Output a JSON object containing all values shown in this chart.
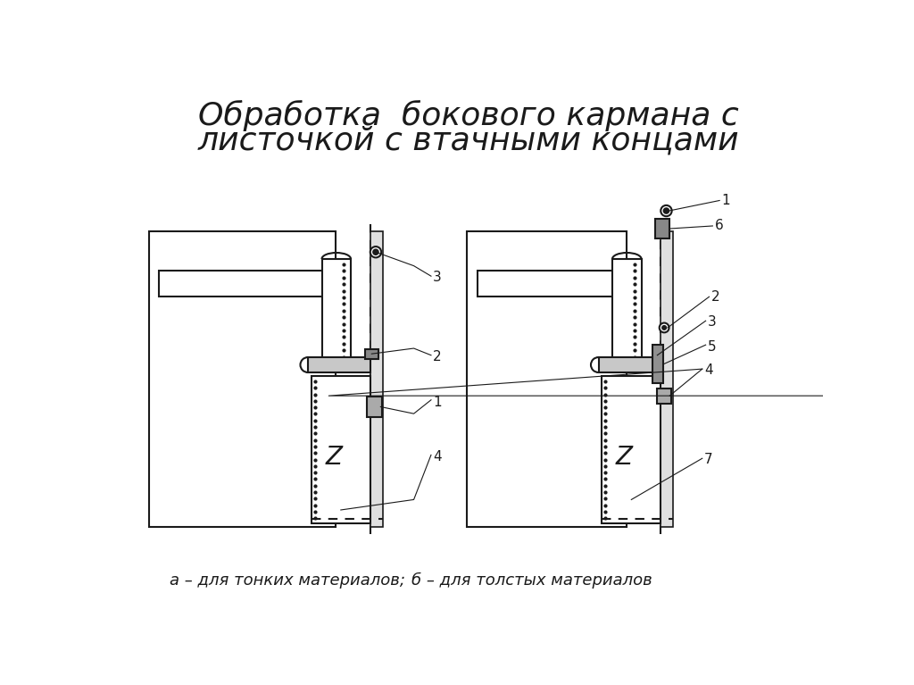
{
  "title_line1": "Обработка  бокового кармана с",
  "title_line2": "листочкой с втачными концами",
  "caption_left": "а – для тонких материалов;",
  "caption_right": "б – для толстых материалов",
  "bg_color": "#ffffff",
  "line_color": "#1a1a1a",
  "title_fontsize": 26,
  "caption_fontsize": 13,
  "label_fontsize": 11
}
